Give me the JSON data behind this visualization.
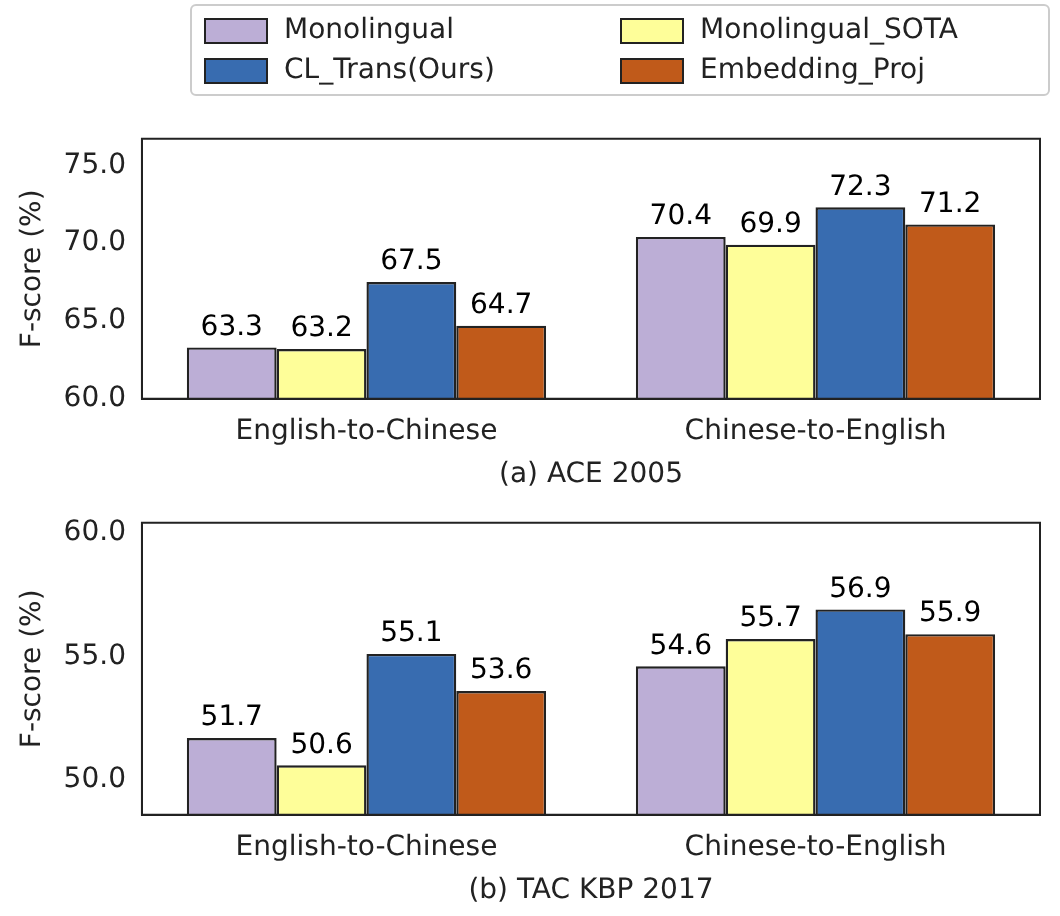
{
  "chart_data": [
    {
      "type": "bar",
      "categories": [
        "English-to-Chinese",
        "Chinese-to-English"
      ],
      "xlabel": "(a) ACE 2005",
      "ylabel": "F-score (%)",
      "ylim": [
        60,
        76.7
      ],
      "yticks": [
        {
          "value": 60,
          "label": "60.0"
        },
        {
          "value": 65,
          "label": "65.0"
        },
        {
          "value": 70,
          "label": "70.0"
        },
        {
          "value": 75,
          "label": "75.0"
        }
      ],
      "data_labels": true,
      "legend": "top",
      "grid": false,
      "series": [
        {
          "name": "Monolingual",
          "color": "#bcaed6",
          "values": [
            63.3,
            70.4
          ]
        },
        {
          "name": "Monolingual_SOTA",
          "color": "#fefe99",
          "values": [
            63.2,
            69.9
          ]
        },
        {
          "name": "CL_Trans(Ours)",
          "color": "#386cb0",
          "values": [
            67.5,
            72.3
          ]
        },
        {
          "name": "Embedding_Proj",
          "color": "#c05a1a",
          "values": [
            64.7,
            71.2
          ]
        }
      ]
    },
    {
      "type": "bar",
      "categories": [
        "English-to-Chinese",
        "Chinese-to-English"
      ],
      "xlabel": "(b) TAC KBP 2017",
      "ylabel": "F-score (%)",
      "ylim": [
        48.6,
        60.4
      ],
      "yticks": [
        {
          "value": 50,
          "label": "50.0"
        },
        {
          "value": 55,
          "label": "55.0"
        },
        {
          "value": 60,
          "label": "60.0"
        }
      ],
      "data_labels": true,
      "grid": false,
      "series": [
        {
          "color": "#bcaed6",
          "values": [
            51.7,
            54.6
          ]
        },
        {
          "color": "#fefe99",
          "values": [
            50.6,
            55.7
          ]
        },
        {
          "color": "#386cb0",
          "values": [
            55.1,
            56.9
          ]
        },
        {
          "color": "#c05a1a",
          "values": [
            53.6,
            55.9
          ]
        }
      ]
    }
  ]
}
